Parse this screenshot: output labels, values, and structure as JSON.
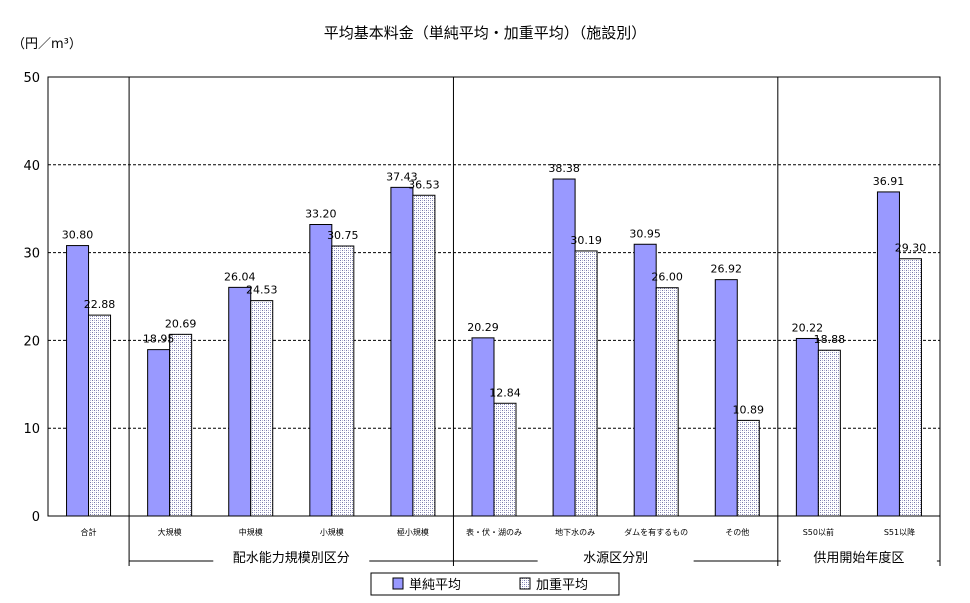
{
  "chart_data": {
    "type": "bar",
    "title": "平均基本料金（単純平均・加重平均）（施設別）",
    "unit_label": "（円／m³）",
    "ylim": [
      0,
      50
    ],
    "yticks": [
      0,
      10,
      20,
      30,
      40,
      50
    ],
    "grid": true,
    "legend_position": "bottom",
    "categories": [
      "合計",
      "大規模",
      "中規模",
      "小規模",
      "極小規模",
      "表・伏・湖のみ",
      "地下水のみ",
      "ダムを有するもの",
      "その他",
      "S50以前",
      "S51以降"
    ],
    "series": [
      {
        "name": "単純平均",
        "values": [
          30.8,
          18.95,
          26.04,
          33.2,
          37.43,
          20.29,
          38.38,
          30.95,
          26.92,
          20.22,
          36.91
        ]
      },
      {
        "name": "加重平均",
        "values": [
          22.88,
          20.69,
          24.53,
          30.75,
          36.53,
          12.84,
          30.19,
          26.0,
          10.89,
          18.88,
          29.3
        ]
      }
    ],
    "groups": [
      {
        "label": "配水能力規模別区分",
        "first": 1,
        "last": 4
      },
      {
        "label": "水源区分別",
        "first": 5,
        "last": 8
      },
      {
        "label": "供用開始年度区",
        "first": 9,
        "last": 10
      }
    ],
    "colors": {
      "series1": "#9999ff",
      "series2": "#d4d4f2"
    }
  }
}
